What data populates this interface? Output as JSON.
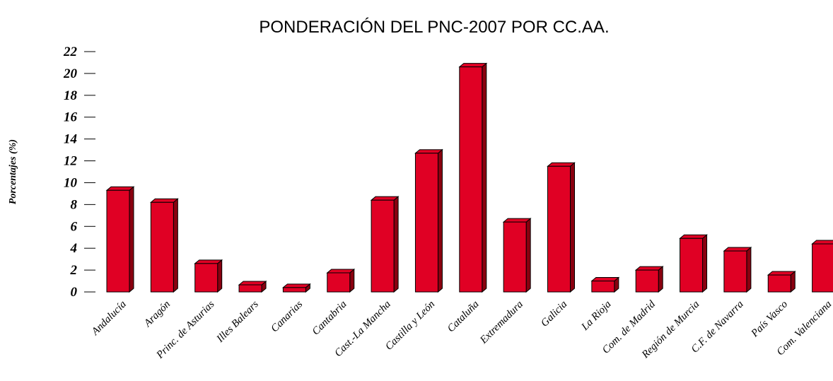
{
  "chart_data": {
    "type": "bar3d",
    "title": "PONDERACIÓN DEL PNC-2007 POR CC.AA.",
    "ylabel": "Porcentajes (%)",
    "categories": [
      "Andalucía",
      "Aragón",
      "Princ. de Asturias",
      "Illes Balears",
      "Canarias",
      "Cantabria",
      "Cast.-La Mancha",
      "Castilla y León",
      "Cataluña",
      "Extremadura",
      "Galicia",
      "La Rioja",
      "Com. de Madrid",
      "Región de Murcia",
      "C.F. de Navarra",
      "País Vasco",
      "Com. Valenciana"
    ],
    "values": [
      9.3,
      8.2,
      2.6,
      0.65,
      0.4,
      1.75,
      8.4,
      12.7,
      20.6,
      6.4,
      11.5,
      1.0,
      2.0,
      4.9,
      3.75,
      1.55,
      4.4
    ],
    "color": "#e00024",
    "ylim": [
      0,
      22
    ],
    "yticks": [
      0,
      2,
      4,
      6,
      8,
      10,
      12,
      14,
      16,
      18,
      20,
      22
    ]
  }
}
